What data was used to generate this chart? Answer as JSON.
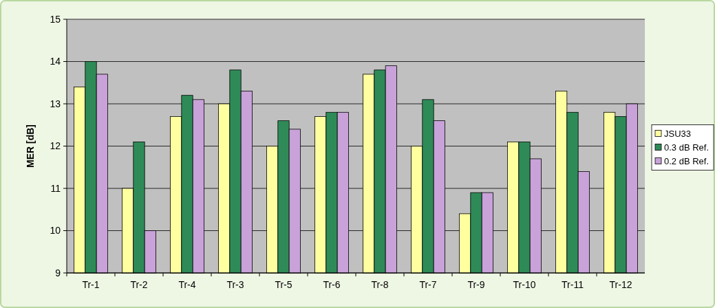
{
  "chart_data": {
    "type": "bar",
    "ylabel": "MER [dB]",
    "categories": [
      "Tr-1",
      "Tr-2",
      "Tr-4",
      "Tr-3",
      "Tr-5",
      "Tr-6",
      "Tr-8",
      "Tr-7",
      "Tr-9",
      "Tr-10",
      "Tr-11",
      "Tr-12"
    ],
    "series": [
      {
        "name": "JSU33",
        "color": "#ffffa0",
        "values": [
          13.4,
          11.0,
          12.7,
          13.0,
          12.0,
          12.7,
          13.7,
          12.0,
          10.4,
          12.1,
          13.3,
          12.8
        ]
      },
      {
        "name": "0.3 dB Ref.",
        "color": "#2e8b57",
        "values": [
          14.0,
          12.1,
          13.2,
          13.8,
          12.6,
          12.8,
          13.8,
          13.1,
          10.9,
          12.1,
          12.8,
          12.7
        ]
      },
      {
        "name": "0.2 dB Ref.",
        "color": "#c8a2d8",
        "values": [
          13.7,
          10.0,
          13.1,
          13.3,
          12.4,
          12.8,
          13.9,
          12.6,
          10.9,
          11.7,
          11.4,
          13.0
        ]
      }
    ],
    "ylim": [
      9,
      15
    ],
    "yticks": [
      9,
      10,
      11,
      12,
      13,
      14,
      15
    ],
    "grid": "y",
    "legend": "right"
  }
}
